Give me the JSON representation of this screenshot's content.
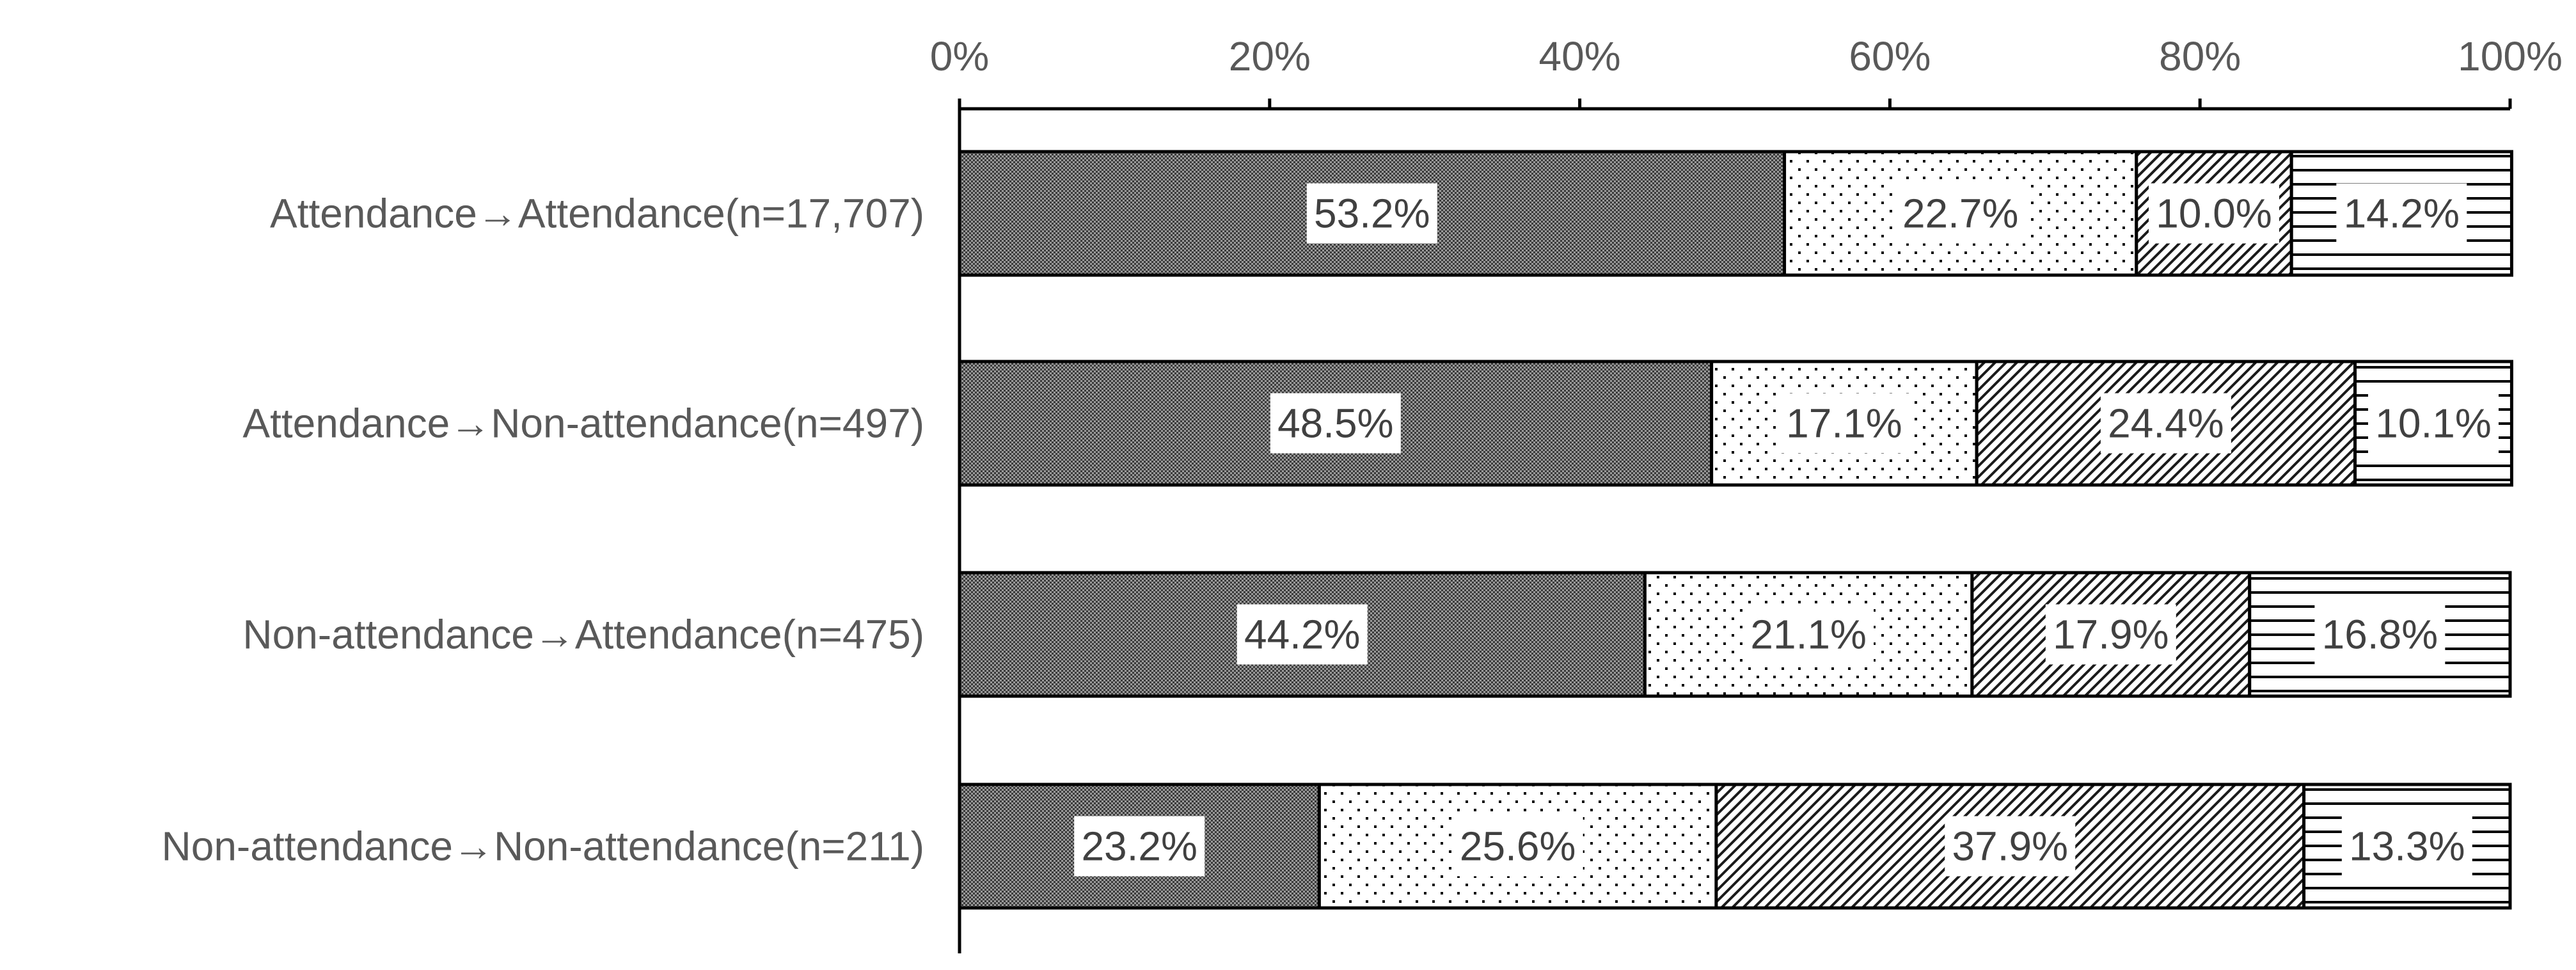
{
  "chart_data": {
    "type": "bar",
    "orientation": "horizontal",
    "stacked": true,
    "stack_mode": "percent",
    "categories": [
      "Attendance→Attendance(n=17,707)",
      "Attendance→Non-attendance(n=497)",
      "Non-attendance→Attendance(n=475)",
      "Non-attendance→Non-attendance(n=211)"
    ],
    "series": [
      {
        "values": [
          53.2,
          48.5,
          44.2,
          23.2
        ],
        "labels": [
          "53.2%",
          "48.5%",
          "44.2%",
          "23.2%"
        ],
        "fill": "dense-dots",
        "color": "#595959"
      },
      {
        "values": [
          22.7,
          17.1,
          21.1,
          25.6
        ],
        "labels": [
          "22.7%",
          "17.1%",
          "21.1%",
          "25.6%"
        ],
        "fill": "sparse-dots",
        "color": "#000000"
      },
      {
        "values": [
          10.0,
          24.4,
          17.9,
          37.9
        ],
        "labels": [
          "10.0%",
          "24.4%",
          "17.9%",
          "37.9%"
        ],
        "fill": "diagonal-hatch",
        "color": "#000000"
      },
      {
        "values": [
          14.2,
          10.1,
          16.8,
          13.3
        ],
        "labels": [
          "14.2%",
          "10.1%",
          "16.8%",
          "13.3%"
        ],
        "fill": "horizontal-lines",
        "color": "#000000"
      }
    ],
    "x_ticks": [
      "0%",
      "20%",
      "40%",
      "60%",
      "80%",
      "100%"
    ],
    "xlim": [
      0,
      100
    ],
    "x_axis_position": "top",
    "grid": false,
    "legend": "none",
    "title": "",
    "xlabel": "",
    "ylabel": ""
  }
}
